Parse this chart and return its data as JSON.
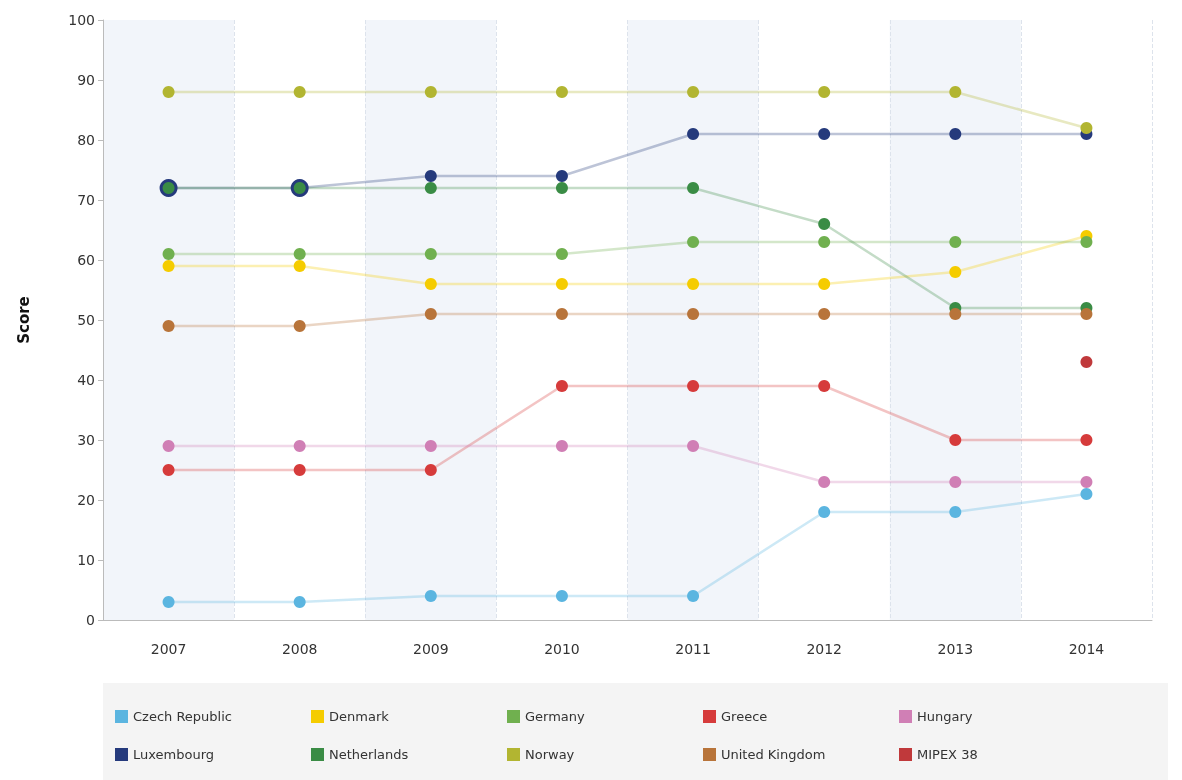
{
  "chart_data": {
    "type": "line",
    "ylabel": "Score",
    "categories": [
      "2007",
      "2008",
      "2009",
      "2010",
      "2011",
      "2012",
      "2013",
      "2014"
    ],
    "ylim": [
      0,
      100
    ],
    "yticks": [
      0,
      10,
      20,
      30,
      40,
      50,
      60,
      70,
      80,
      90,
      100
    ],
    "grid": "x",
    "legend": "bottom",
    "marker": "circle",
    "line_style": "solid",
    "series": [
      {
        "name": "Czech Republic",
        "color": "#5bb5e0",
        "values": [
          3,
          3,
          4,
          4,
          4,
          18,
          18,
          21
        ]
      },
      {
        "name": "Denmark",
        "color": "#f5cc00",
        "values": [
          59,
          59,
          56,
          56,
          56,
          56,
          58,
          64
        ]
      },
      {
        "name": "Germany",
        "color": "#70b04f",
        "values": [
          61,
          61,
          61,
          61,
          63,
          63,
          63,
          63
        ]
      },
      {
        "name": "Greece",
        "color": "#d63b3b",
        "values": [
          25,
          25,
          25,
          39,
          39,
          39,
          30,
          30
        ]
      },
      {
        "name": "Hungary",
        "color": "#d07fb5",
        "values": [
          29,
          29,
          29,
          29,
          29,
          23,
          23,
          23
        ]
      },
      {
        "name": "Luxembourg",
        "color": "#253a7c",
        "values": [
          72,
          72,
          74,
          74,
          81,
          81,
          81,
          81
        ]
      },
      {
        "name": "Netherlands",
        "color": "#3a8c45",
        "values": [
          72,
          72,
          72,
          72,
          72,
          66,
          52,
          52
        ]
      },
      {
        "name": "Norway",
        "color": "#b2b531",
        "values": [
          88,
          88,
          88,
          88,
          88,
          88,
          88,
          82
        ]
      },
      {
        "name": "United Kingdom",
        "color": "#b8743a",
        "values": [
          49,
          49,
          51,
          51,
          51,
          51,
          51,
          51
        ]
      },
      {
        "name": "MIPEX 38",
        "color": "#c0393b",
        "values": [
          null,
          null,
          null,
          null,
          null,
          null,
          null,
          43
        ]
      }
    ]
  }
}
